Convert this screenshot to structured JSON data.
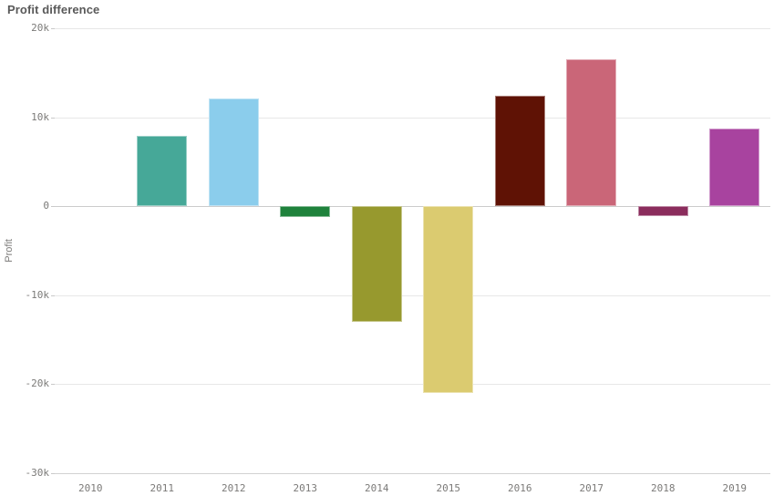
{
  "title": "Profit difference",
  "chart_data": {
    "type": "bar",
    "title": "Profit difference",
    "xlabel": "",
    "ylabel": "Profit",
    "categories": [
      "2010",
      "2011",
      "2012",
      "2013",
      "2014",
      "2015",
      "2016",
      "2017",
      "2018",
      "2019"
    ],
    "values": [
      0,
      7900,
      12100,
      -1200,
      -13000,
      -21000,
      12400,
      16500,
      -1100,
      8700
    ],
    "colors": [
      null,
      "#46a898",
      "#8bcdec",
      "#1f823c",
      "#97992e",
      "#dbcb70",
      "#5f1205",
      "#ca6678",
      "#8b2d5d",
      "#a8439f"
    ],
    "ylim": [
      -30000,
      20000
    ],
    "yticks": [
      {
        "value": 20000,
        "label": "20k"
      },
      {
        "value": 10000,
        "label": "10k"
      },
      {
        "value": 0,
        "label": "0"
      },
      {
        "value": -10000,
        "label": "-10k"
      },
      {
        "value": -20000,
        "label": "-20k"
      },
      {
        "value": -30000,
        "label": "-30k"
      }
    ],
    "grid": true,
    "legend": false,
    "bar_width_ratio": 0.7
  },
  "style": {
    "background": "#ffffff",
    "title_color": "#595959",
    "axis_text_color": "#7b7a78",
    "gridline_color": "#e7e7e7",
    "zero_line_color": "#cccccc",
    "baseline_color": "#d2d2d2"
  }
}
